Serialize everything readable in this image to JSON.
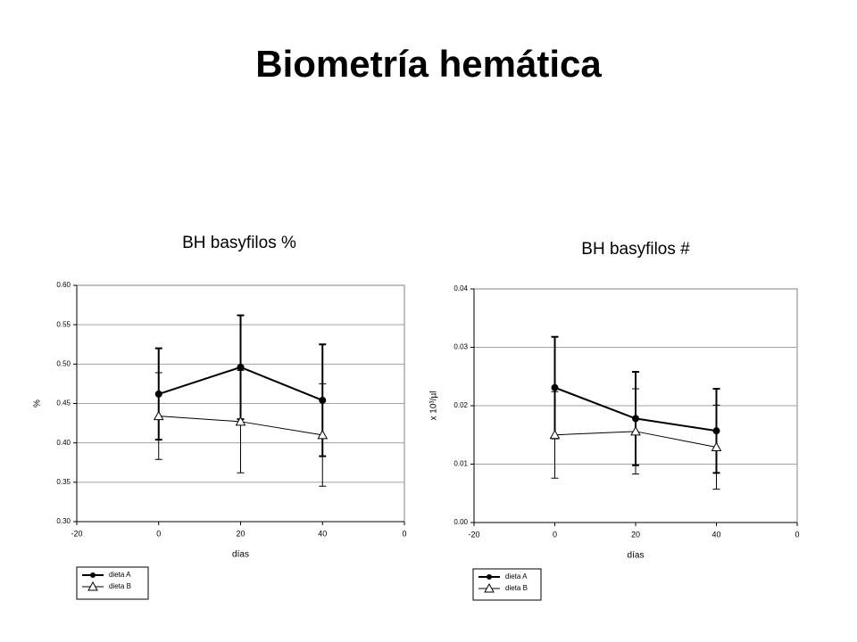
{
  "title": "Biometría hemática",
  "chart_data": [
    {
      "type": "line",
      "title": "BH basyfilos %",
      "xlabel": "días",
      "ylabel": "%",
      "x": [
        0,
        20,
        40
      ],
      "xlim": [
        -20,
        60
      ],
      "xticks": [
        -20,
        0,
        20,
        40,
        {
          "value": 60,
          "label": "0"
        }
      ],
      "ylim": [
        0.3,
        0.6
      ],
      "yticks": [
        {
          "value": 0.3,
          "label": "0.30"
        },
        0.35,
        {
          "value": 0.4,
          "label": "0.40"
        },
        0.45,
        {
          "value": 0.5,
          "label": "0.50"
        },
        0.55,
        {
          "value": 0.6,
          "label": "0.60"
        }
      ],
      "grid": true,
      "legend": "bottom-left",
      "series": [
        {
          "name": "dieta A",
          "color": "#000000",
          "marker": "circle",
          "values": [
            0.462,
            0.496,
            0.454
          ],
          "errors": [
            0.058,
            0.066,
            0.071
          ]
        },
        {
          "name": "dieta B",
          "color": "#000000",
          "marker": "triangle",
          "values": [
            0.434,
            0.427,
            0.41
          ],
          "errors": [
            0.055,
            0.065,
            0.065
          ]
        }
      ]
    },
    {
      "type": "line",
      "title": "BH basyfilos #",
      "xlabel": "días",
      "ylabel": "x 10³/µl",
      "x": [
        0,
        20,
        40
      ],
      "xlim": [
        -20,
        60
      ],
      "xticks": [
        -20,
        0,
        20,
        40,
        {
          "value": 60,
          "label": "0"
        }
      ],
      "ylim": [
        0,
        0.04
      ],
      "yticks": [
        {
          "value": 0,
          "label": "0.00"
        },
        0.01,
        0.02,
        0.03,
        0.04
      ],
      "grid": true,
      "legend": "bottom-left",
      "series": [
        {
          "name": "dieta A",
          "color": "#000000",
          "marker": "circle",
          "values": [
            0.0231,
            0.0178,
            0.0157
          ],
          "errors": [
            0.0087,
            0.008,
            0.0072
          ]
        },
        {
          "name": "dieta B",
          "color": "#000000",
          "marker": "triangle",
          "values": [
            0.015,
            0.0156,
            0.0129
          ],
          "errors": [
            0.0074,
            0.0073,
            0.0072
          ]
        }
      ]
    }
  ]
}
